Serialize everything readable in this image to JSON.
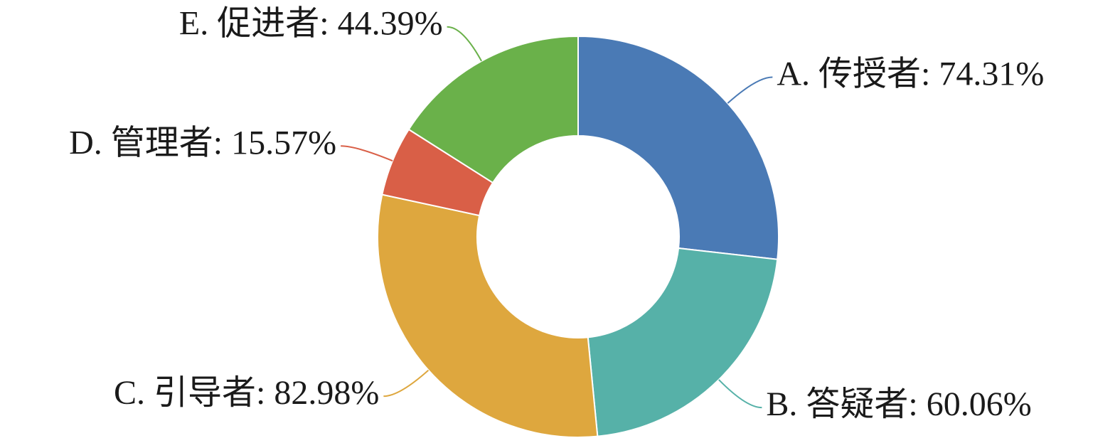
{
  "chart_data": {
    "type": "donut",
    "value_labels": [
      "A. 传授者: 74.31%",
      "B. 答疑者: 60.06%",
      "C. 引导者: 82.98%",
      "D. 管理者: 15.57%",
      "E. 促进者: 44.39%"
    ],
    "values": [
      74.31,
      60.06,
      82.98,
      15.57,
      44.39
    ],
    "colors": [
      "#4a7ab5",
      "#56b1a8",
      "#dea73e",
      "#d95f47",
      "#6ab14a"
    ]
  }
}
